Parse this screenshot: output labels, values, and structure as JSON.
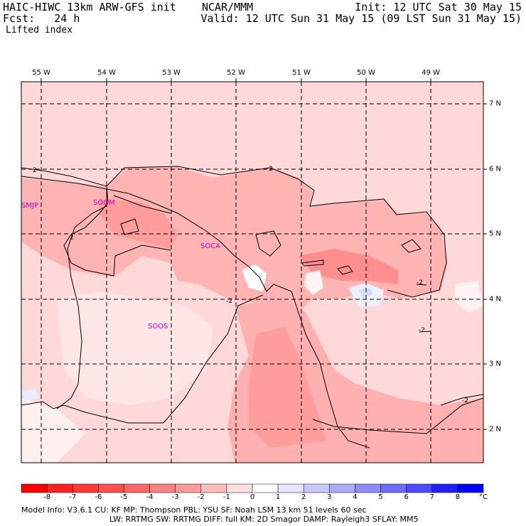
{
  "header": {
    "line1_left": "HAIC-HIWC 13km ARW-GFS init    NCAR/MMM",
    "line1_right": "Init: 12 UTC Sat 30 May 15",
    "line2_left": "Fcst:   24 h",
    "line2_right": "Valid: 12 UTC Sun 31 May 15 (09 LST Sun 31 May 15)",
    "field": "Lifted index"
  },
  "longitudes": [
    "55 W",
    "54 W",
    "53 W",
    "52 W",
    "51 W",
    "50 W",
    "49 W"
  ],
  "latitudes": [
    "7 N",
    "6 N",
    "5 N",
    "4 N",
    "3 N",
    "2 N"
  ],
  "stations": [
    "SMJP",
    "SOGM",
    "SOCA",
    "SOOS"
  ],
  "contour_labels": [
    "2",
    "2",
    "2",
    "-2",
    "-2",
    "-2",
    "-2"
  ],
  "colorbar": {
    "labels": [
      "-8",
      "-7",
      "-6",
      "-5",
      "-4",
      "-3",
      "-2",
      "-1",
      "0",
      "1",
      "2",
      "3",
      "4",
      "5",
      "6",
      "7",
      "8"
    ],
    "unit": "°C",
    "colors": [
      "#ff0000",
      "#ff2020",
      "#ff3838",
      "#ff5050",
      "#ff6666",
      "#ff8080",
      "#ff9c9c",
      "#ffbcbc",
      "#ffe0e0",
      "#ffffff",
      "#e4e4ff",
      "#c8c8ff",
      "#aaaaff",
      "#8c8cff",
      "#6c6cff",
      "#4a4aff",
      "#2020ff",
      "#0000ff"
    ]
  },
  "footer": {
    "line1": "Model Info: V3.6.1    CU: KF       MP: Thompson    PBL: YSU       SF: Noah LSM      13 km    51 levels   60 sec",
    "line2": "LW: RRTMG    SW: RRTMG   DIFF: full    KM: 2D Smagor DAMP: Rayleigh3  SFLAY: MM5"
  }
}
